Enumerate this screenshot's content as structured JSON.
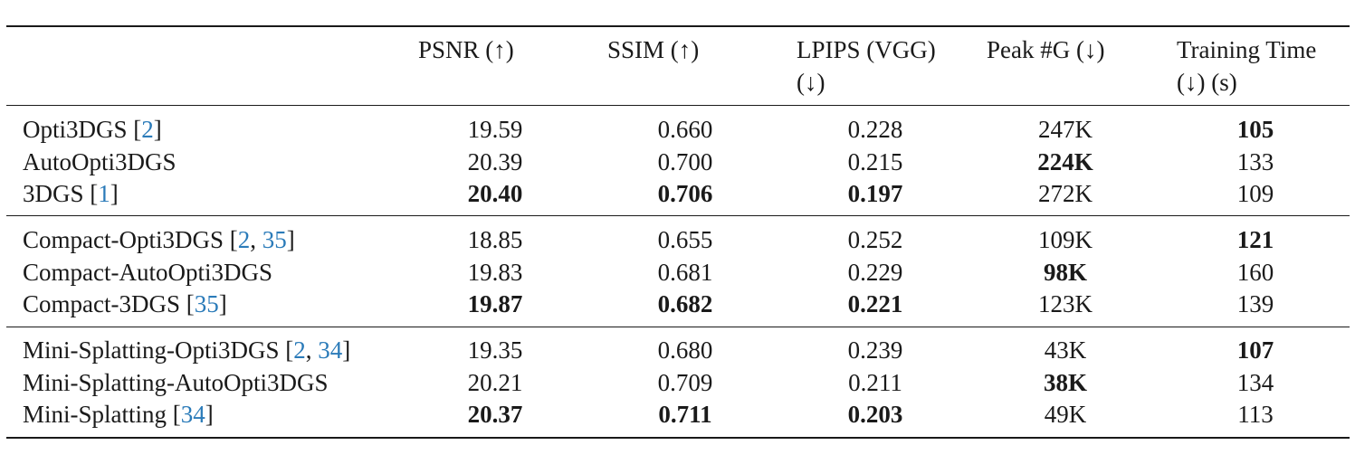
{
  "table": {
    "headers": {
      "psnr": "PSNR (↑)",
      "ssim": "SSIM (↑)",
      "lpips_line1": "LPIPS (VGG)",
      "lpips_line2": "(↓)",
      "peak": "Peak #G (↓)",
      "time_line1": "Training Time",
      "time_line2": "(↓) (s)"
    },
    "groups": [
      {
        "rows": [
          {
            "method": "Opti3DGS",
            "cites": [
              "2"
            ],
            "psnr": "19.59",
            "ssim": "0.660",
            "lpips": "0.228",
            "peak": "247K",
            "time": "105"
          },
          {
            "method": "AutoOpti3DGS",
            "cites": [],
            "psnr": "20.39",
            "ssim": "0.700",
            "lpips": "0.215",
            "peak": "224K",
            "time": "133"
          },
          {
            "method": "3DGS",
            "cites": [
              "1"
            ],
            "psnr": "20.40",
            "ssim": "0.706",
            "lpips": "0.197",
            "peak": "272K",
            "time": "109"
          }
        ]
      },
      {
        "rows": [
          {
            "method": "Compact-Opti3DGS",
            "cites": [
              "2",
              "35"
            ],
            "psnr": "18.85",
            "ssim": "0.655",
            "lpips": "0.252",
            "peak": "109K",
            "time": "121"
          },
          {
            "method": "Compact-AutoOpti3DGS",
            "cites": [],
            "psnr": "19.83",
            "ssim": "0.681",
            "lpips": "0.229",
            "peak": "98K",
            "time": "160"
          },
          {
            "method": "Compact-3DGS",
            "cites": [
              "35"
            ],
            "psnr": "19.87",
            "ssim": "0.682",
            "lpips": "0.221",
            "peak": "123K",
            "time": "139"
          }
        ]
      },
      {
        "rows": [
          {
            "method": "Mini-Splatting-Opti3DGS",
            "cites": [
              "2",
              "34"
            ],
            "psnr": "19.35",
            "ssim": "0.680",
            "lpips": "0.239",
            "peak": "43K",
            "time": "107"
          },
          {
            "method": "Mini-Splatting-AutoOpti3DGS",
            "cites": [],
            "psnr": "20.21",
            "ssim": "0.709",
            "lpips": "0.211",
            "peak": "38K",
            "time": "134"
          },
          {
            "method": "Mini-Splatting",
            "cites": [
              "34"
            ],
            "psnr": "20.37",
            "ssim": "0.711",
            "lpips": "0.203",
            "peak": "49K",
            "time": "113"
          }
        ]
      }
    ],
    "colors": {
      "text": "#1a1a1a",
      "citation": "#2b7bb9"
    }
  }
}
